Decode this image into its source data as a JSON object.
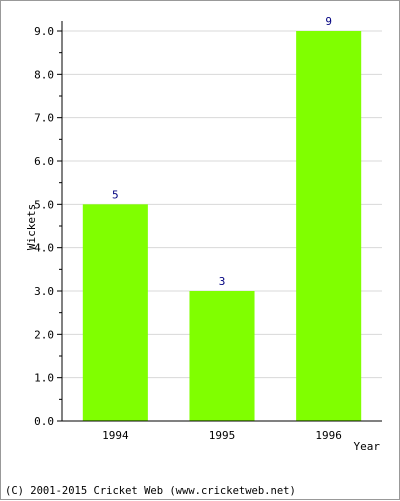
{
  "chart_data": {
    "type": "bar",
    "categories": [
      "1994",
      "1995",
      "1996"
    ],
    "values": [
      5,
      3,
      9
    ],
    "data_labels": [
      "5",
      "3",
      "9"
    ],
    "title": "",
    "xlabel": "Year",
    "ylabel": "Wickets",
    "ylim": [
      0,
      9
    ],
    "yticks": [
      "0.0",
      "1.0",
      "2.0",
      "3.0",
      "4.0",
      "5.0",
      "6.0",
      "7.0",
      "8.0",
      "9.0"
    ],
    "grid": true,
    "bar_color": "#80ff00",
    "grid_color": "#d8d8d8"
  },
  "footer": {
    "copyright": "(C) 2001-2015 Cricket Web (www.cricketweb.net)"
  }
}
